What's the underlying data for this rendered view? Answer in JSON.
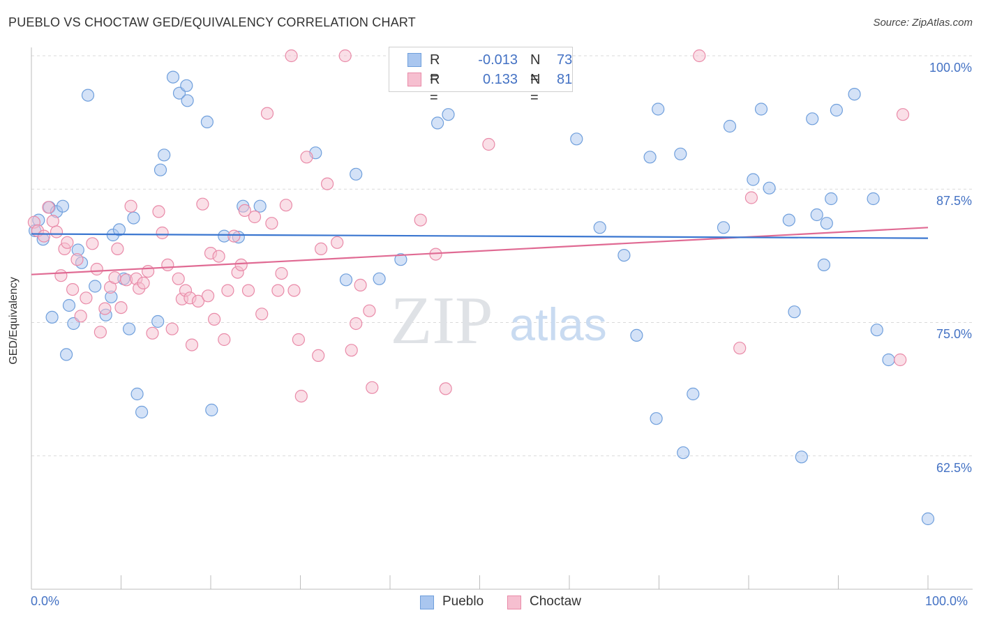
{
  "header": {
    "title": "PUEBLO VS CHOCTAW GED/EQUIVALENCY CORRELATION CHART",
    "source": "Source: ZipAtlas.com"
  },
  "watermark": {
    "zip": "ZIP",
    "atlas": "atlas"
  },
  "legend_top": {
    "rows": [
      {
        "r_label": "R =",
        "r_value": "-0.013",
        "n_label": "N =",
        "n_value": "73"
      },
      {
        "r_label": "R =",
        "r_value": "0.133",
        "n_label": "N =",
        "n_value": "81"
      }
    ]
  },
  "colors": {
    "pueblo_fill": "#a9c6ef",
    "pueblo_stroke": "#6f9fdc",
    "pueblo_line": "#3a76d0",
    "choctaw_fill": "#f6bfd0",
    "choctaw_stroke": "#e98aa8",
    "choctaw_line": "#e06a93",
    "tick_text": "#4472c4"
  },
  "chart_data": {
    "type": "scatter",
    "title": "PUEBLO VS CHOCTAW GED/EQUIVALENCY CORRELATION CHART",
    "xlabel": "",
    "ylabel": "GED/Equivalency",
    "xlim": [
      0,
      100
    ],
    "ylim": [
      52.5,
      102.5
    ],
    "x_tick_labels": [
      "0.0%",
      "100.0%"
    ],
    "y_ticks": [
      62.5,
      75.0,
      87.5,
      100.0
    ],
    "y_tick_labels": [
      "62.5%",
      "75.0%",
      "87.5%",
      "100.0%"
    ],
    "grid": "horizontal dashed",
    "legend_placement": "top-center and bottom-center",
    "series": [
      {
        "name": "Pueblo",
        "R": -0.013,
        "N": 73,
        "trend": {
          "x": [
            0,
            100
          ],
          "y": [
            83.3,
            82.9
          ]
        },
        "points": [
          [
            0.4,
            83.6
          ],
          [
            0.8,
            84.6
          ],
          [
            1.3,
            82.8
          ],
          [
            2.0,
            85.8
          ],
          [
            2.3,
            75.5
          ],
          [
            2.8,
            85.4
          ],
          [
            3.5,
            85.9
          ],
          [
            3.9,
            72.0
          ],
          [
            4.2,
            76.6
          ],
          [
            4.7,
            74.9
          ],
          [
            5.2,
            81.8
          ],
          [
            5.6,
            80.6
          ],
          [
            6.3,
            96.3
          ],
          [
            7.1,
            78.4
          ],
          [
            8.3,
            75.7
          ],
          [
            8.9,
            77.4
          ],
          [
            9.1,
            83.2
          ],
          [
            9.8,
            83.7
          ],
          [
            10.3,
            79.1
          ],
          [
            10.9,
            74.4
          ],
          [
            11.4,
            84.8
          ],
          [
            11.8,
            68.3
          ],
          [
            12.3,
            66.6
          ],
          [
            14.1,
            75.1
          ],
          [
            14.4,
            89.3
          ],
          [
            14.8,
            90.7
          ],
          [
            15.8,
            98.0
          ],
          [
            16.5,
            96.5
          ],
          [
            17.3,
            97.2
          ],
          [
            17.4,
            95.8
          ],
          [
            19.6,
            93.8
          ],
          [
            20.1,
            66.8
          ],
          [
            21.5,
            83.1
          ],
          [
            23.1,
            83.0
          ],
          [
            23.6,
            85.9
          ],
          [
            25.5,
            85.9
          ],
          [
            31.7,
            90.9
          ],
          [
            35.1,
            79.0
          ],
          [
            36.2,
            88.9
          ],
          [
            38.8,
            79.1
          ],
          [
            41.2,
            80.9
          ],
          [
            42.8,
            100.0
          ],
          [
            45.3,
            93.7
          ],
          [
            46.5,
            94.5
          ],
          [
            60.8,
            92.2
          ],
          [
            63.4,
            83.9
          ],
          [
            66.1,
            81.3
          ],
          [
            67.5,
            73.8
          ],
          [
            69.0,
            90.5
          ],
          [
            69.9,
            95.0
          ],
          [
            69.7,
            66.0
          ],
          [
            72.7,
            62.8
          ],
          [
            72.4,
            90.8
          ],
          [
            73.8,
            68.3
          ],
          [
            77.2,
            83.9
          ],
          [
            77.9,
            93.4
          ],
          [
            80.5,
            88.4
          ],
          [
            81.4,
            95.0
          ],
          [
            82.3,
            87.6
          ],
          [
            84.5,
            84.6
          ],
          [
            85.1,
            76.0
          ],
          [
            85.9,
            62.4
          ],
          [
            87.1,
            94.1
          ],
          [
            87.6,
            85.1
          ],
          [
            88.4,
            80.4
          ],
          [
            88.7,
            84.3
          ],
          [
            89.2,
            86.6
          ],
          [
            89.8,
            94.9
          ],
          [
            91.8,
            96.4
          ],
          [
            93.9,
            86.6
          ],
          [
            94.3,
            74.3
          ],
          [
            95.6,
            71.5
          ],
          [
            100.0,
            56.6
          ]
        ]
      },
      {
        "name": "Choctaw",
        "R": 0.133,
        "N": 81,
        "trend": {
          "x": [
            0,
            100
          ],
          "y": [
            79.5,
            83.9
          ]
        },
        "points": [
          [
            0.3,
            84.4
          ],
          [
            0.7,
            83.6
          ],
          [
            1.4,
            83.1
          ],
          [
            1.9,
            85.8
          ],
          [
            2.4,
            84.5
          ],
          [
            2.8,
            83.5
          ],
          [
            3.3,
            79.4
          ],
          [
            3.7,
            81.9
          ],
          [
            4.0,
            82.5
          ],
          [
            4.6,
            78.1
          ],
          [
            5.1,
            80.9
          ],
          [
            5.5,
            75.6
          ],
          [
            6.1,
            77.3
          ],
          [
            6.8,
            82.4
          ],
          [
            7.3,
            80.0
          ],
          [
            7.7,
            74.1
          ],
          [
            8.2,
            76.3
          ],
          [
            8.8,
            78.3
          ],
          [
            9.3,
            79.2
          ],
          [
            9.6,
            81.9
          ],
          [
            10.0,
            76.4
          ],
          [
            10.6,
            79.0
          ],
          [
            11.1,
            85.9
          ],
          [
            11.7,
            79.1
          ],
          [
            12.0,
            78.2
          ],
          [
            12.5,
            78.7
          ],
          [
            13.0,
            79.8
          ],
          [
            13.5,
            74.0
          ],
          [
            14.2,
            85.4
          ],
          [
            14.6,
            83.4
          ],
          [
            15.2,
            80.4
          ],
          [
            15.7,
            74.4
          ],
          [
            16.4,
            79.1
          ],
          [
            16.8,
            77.2
          ],
          [
            17.2,
            78.0
          ],
          [
            17.7,
            77.3
          ],
          [
            17.9,
            72.9
          ],
          [
            18.6,
            77.0
          ],
          [
            19.1,
            86.1
          ],
          [
            19.7,
            77.5
          ],
          [
            20.0,
            81.5
          ],
          [
            20.4,
            75.3
          ],
          [
            20.9,
            81.2
          ],
          [
            21.5,
            73.4
          ],
          [
            21.9,
            78.0
          ],
          [
            22.6,
            83.1
          ],
          [
            23.0,
            79.7
          ],
          [
            23.4,
            80.4
          ],
          [
            23.8,
            85.5
          ],
          [
            24.2,
            78.0
          ],
          [
            24.9,
            84.9
          ],
          [
            25.7,
            75.8
          ],
          [
            26.3,
            94.6
          ],
          [
            26.8,
            84.3
          ],
          [
            27.5,
            78.0
          ],
          [
            27.9,
            79.6
          ],
          [
            28.4,
            86.0
          ],
          [
            29.0,
            100.0
          ],
          [
            29.3,
            78.0
          ],
          [
            29.8,
            73.4
          ],
          [
            30.1,
            68.1
          ],
          [
            30.7,
            90.5
          ],
          [
            32.0,
            71.9
          ],
          [
            32.3,
            81.9
          ],
          [
            33.0,
            88.0
          ],
          [
            34.1,
            82.5
          ],
          [
            35.0,
            100.0
          ],
          [
            35.7,
            72.4
          ],
          [
            36.2,
            74.9
          ],
          [
            36.7,
            78.5
          ],
          [
            37.7,
            76.1
          ],
          [
            38.0,
            68.9
          ],
          [
            43.4,
            84.6
          ],
          [
            45.1,
            81.4
          ],
          [
            46.2,
            68.8
          ],
          [
            51.0,
            91.7
          ],
          [
            74.5,
            100.0
          ],
          [
            79.0,
            72.6
          ],
          [
            80.3,
            86.7
          ],
          [
            97.2,
            94.5
          ],
          [
            96.9,
            71.5
          ]
        ]
      }
    ]
  }
}
